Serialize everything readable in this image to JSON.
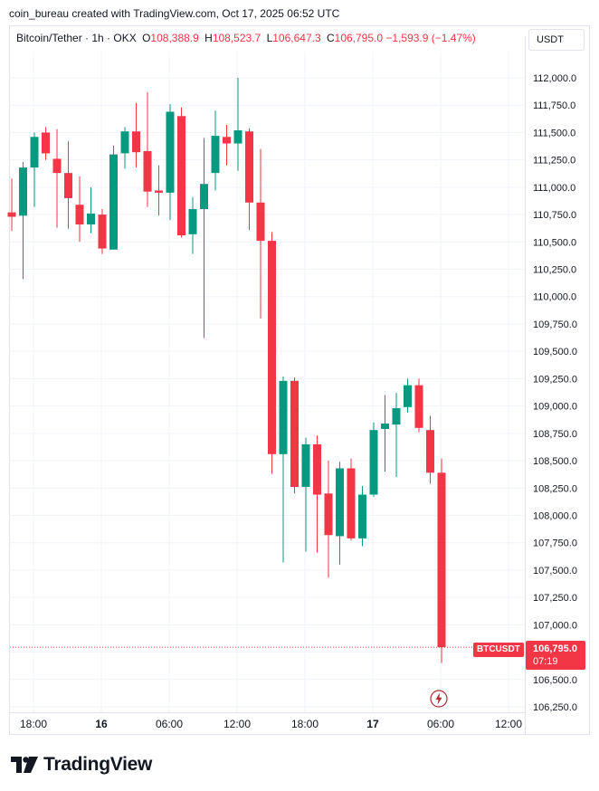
{
  "header": {
    "attribution": "coin_bureau created with TradingView.com, Oct 17, 2025 06:52 UTC"
  },
  "legend": {
    "symbol": "Bitcoin/Tether · 1h · OKX",
    "o_label": "O",
    "o_value": "108,388.9",
    "h_label": "H",
    "h_value": "108,523.7",
    "l_label": "L",
    "l_value": "106,647.3",
    "c_label": "C",
    "c_value": "106,795.0",
    "change": "−1,593.9 (−1.47%)"
  },
  "currency_button": {
    "label": "USDT"
  },
  "price_tag": {
    "symbol": "BTCUSDT",
    "price": "106,795.0",
    "countdown": "07:19"
  },
  "logo": {
    "text": "TradingView"
  },
  "colors": {
    "up": "#089981",
    "down": "#f23645",
    "grid": "#f0f3fa",
    "text": "#131722"
  },
  "chart_data": {
    "type": "candlestick",
    "ylim": [
      106150,
      112250
    ],
    "y_ticks": [
      106250,
      106500,
      106750,
      107000,
      107250,
      107500,
      107750,
      108000,
      108250,
      108500,
      108750,
      109000,
      109250,
      109500,
      109750,
      110000,
      110250,
      110500,
      110750,
      111000,
      111250,
      111500,
      111750,
      112000
    ],
    "y_tick_labels": [
      "106,250.0",
      "106,500.0",
      "106,750.0",
      "107,000.0",
      "107,250.0",
      "107,500.0",
      "107,750.0",
      "108,000.0",
      "108,250.0",
      "108,500.0",
      "108,750.0",
      "109,000.0",
      "109,250.0",
      "109,500.0",
      "109,750.0",
      "110,000.0",
      "110,250.0",
      "110,500.0",
      "110,750.0",
      "111,000.0",
      "111,250.0",
      "111,500.0",
      "111,750.0",
      "112,000.0"
    ],
    "x_ticks": [
      {
        "index": 2,
        "label": "18:00"
      },
      {
        "index": 8,
        "label": "16"
      },
      {
        "index": 14,
        "label": "06:00"
      },
      {
        "index": 20,
        "label": "12:00"
      },
      {
        "index": 26,
        "label": "18:00"
      },
      {
        "index": 32,
        "label": "17"
      },
      {
        "index": 38,
        "label": "06:00"
      },
      {
        "index": 44,
        "label": "12:00"
      }
    ],
    "last_price": 106795.0,
    "candles": [
      {
        "o": 110770,
        "h": 111080,
        "l": 110600,
        "c": 110730
      },
      {
        "o": 110740,
        "h": 111230,
        "l": 110160,
        "c": 111180
      },
      {
        "o": 111180,
        "h": 111500,
        "l": 110820,
        "c": 111460
      },
      {
        "o": 111500,
        "h": 111550,
        "l": 111250,
        "c": 111310
      },
      {
        "o": 111260,
        "h": 111530,
        "l": 110630,
        "c": 111130
      },
      {
        "o": 111130,
        "h": 111420,
        "l": 110620,
        "c": 110900
      },
      {
        "o": 110840,
        "h": 111100,
        "l": 110500,
        "c": 110660
      },
      {
        "o": 110660,
        "h": 111000,
        "l": 110580,
        "c": 110760
      },
      {
        "o": 110750,
        "h": 110800,
        "l": 110390,
        "c": 110440
      },
      {
        "o": 110430,
        "h": 111380,
        "l": 110430,
        "c": 111300
      },
      {
        "o": 111310,
        "h": 111550,
        "l": 111170,
        "c": 111510
      },
      {
        "o": 111510,
        "h": 111770,
        "l": 111180,
        "c": 111320
      },
      {
        "o": 111330,
        "h": 111870,
        "l": 110820,
        "c": 110960
      },
      {
        "o": 110970,
        "h": 111200,
        "l": 110740,
        "c": 110950
      },
      {
        "o": 110950,
        "h": 111760,
        "l": 110700,
        "c": 111690
      },
      {
        "o": 111650,
        "h": 111730,
        "l": 110540,
        "c": 110560
      },
      {
        "o": 110570,
        "h": 110910,
        "l": 110390,
        "c": 110800
      },
      {
        "o": 110800,
        "h": 111450,
        "l": 109620,
        "c": 111030
      },
      {
        "o": 111130,
        "h": 111700,
        "l": 110970,
        "c": 111470
      },
      {
        "o": 111460,
        "h": 111570,
        "l": 111200,
        "c": 111400
      },
      {
        "o": 111400,
        "h": 112000,
        "l": 111150,
        "c": 111520
      },
      {
        "o": 111510,
        "h": 111540,
        "l": 110610,
        "c": 110860
      },
      {
        "o": 110860,
        "h": 111350,
        "l": 109800,
        "c": 110510
      },
      {
        "o": 110510,
        "h": 110590,
        "l": 108380,
        "c": 108560
      },
      {
        "o": 108560,
        "h": 109270,
        "l": 107570,
        "c": 109230
      },
      {
        "o": 109230,
        "h": 109260,
        "l": 108200,
        "c": 108260
      },
      {
        "o": 108260,
        "h": 108710,
        "l": 107670,
        "c": 108650
      },
      {
        "o": 108650,
        "h": 108730,
        "l": 107660,
        "c": 108190
      },
      {
        "o": 108200,
        "h": 108500,
        "l": 107430,
        "c": 107820
      },
      {
        "o": 107810,
        "h": 108490,
        "l": 107550,
        "c": 108430
      },
      {
        "o": 108430,
        "h": 108520,
        "l": 107770,
        "c": 107790
      },
      {
        "o": 107790,
        "h": 108270,
        "l": 107720,
        "c": 108190
      },
      {
        "o": 108190,
        "h": 108850,
        "l": 108170,
        "c": 108780
      },
      {
        "o": 108790,
        "h": 109100,
        "l": 108400,
        "c": 108840
      },
      {
        "o": 108830,
        "h": 109120,
        "l": 108350,
        "c": 108980
      },
      {
        "o": 108990,
        "h": 109250,
        "l": 108940,
        "c": 109190
      },
      {
        "o": 109190,
        "h": 109250,
        "l": 108760,
        "c": 108800
      },
      {
        "o": 108780,
        "h": 108910,
        "l": 108290,
        "c": 108390
      },
      {
        "o": 108390,
        "h": 108520,
        "l": 106650,
        "c": 106795
      }
    ]
  }
}
